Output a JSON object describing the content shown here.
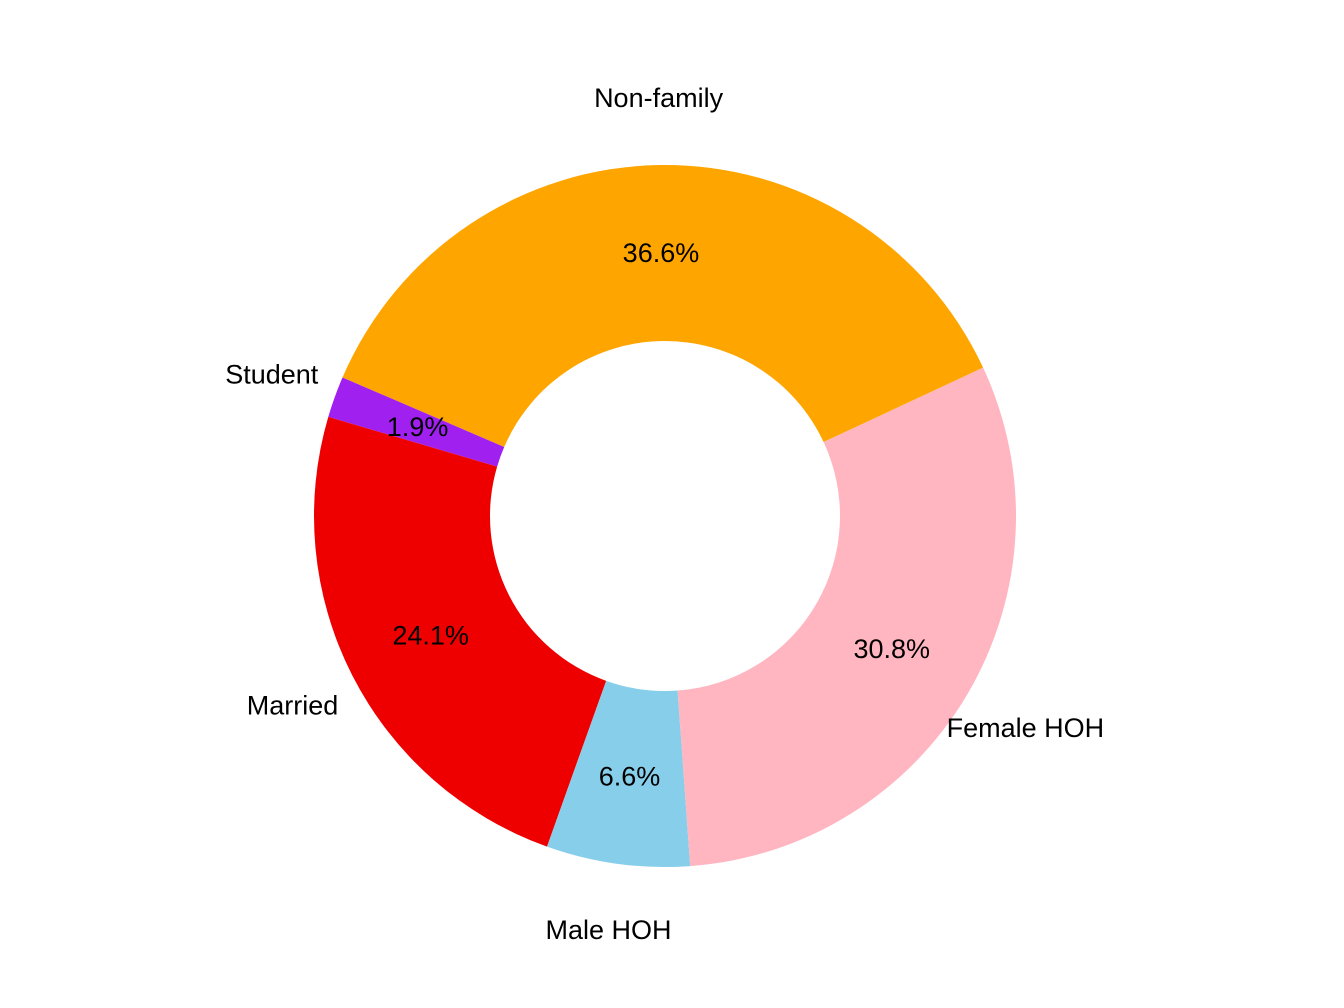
{
  "chart_data": {
    "type": "pie",
    "variant": "donut",
    "title": "",
    "slices": [
      {
        "label": "Non-family",
        "value": 36.6,
        "percent_label": "36.6%",
        "color": "#FFA500"
      },
      {
        "label": "Student",
        "value": 1.9,
        "percent_label": "1.9%",
        "color": "#A020F0"
      },
      {
        "label": "Married",
        "value": 24.1,
        "percent_label": "24.1%",
        "color": "#EE0000"
      },
      {
        "label": "Male HOH",
        "value": 6.6,
        "percent_label": "6.6%",
        "color": "#87CEEB"
      },
      {
        "label": "Female HOH",
        "value": 30.8,
        "percent_label": "30.8%",
        "color": "#FFB6C1"
      }
    ],
    "legend": "none",
    "grid": false
  }
}
